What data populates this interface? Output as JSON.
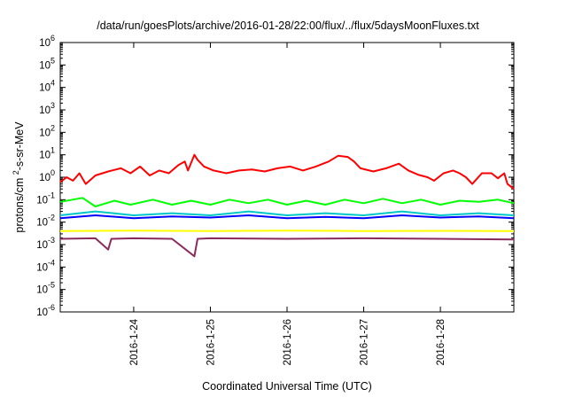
{
  "chart_data": {
    "type": "line",
    "title": "/data/run/goesPlots/archive/2016-01-28/22:00/flux/../flux/5daysMoonFluxes.txt",
    "xlabel": "Coordinated Universal Time (UTC)",
    "ylabel": "protons/cm²-s-sr-MeV",
    "yscale": "log",
    "ylim": [
      1e-06,
      1000000.0
    ],
    "xlim": [
      "2016-01-23 01:00",
      "2016-01-28 23:00"
    ],
    "grid": false,
    "legend": "none",
    "x_ticks": [
      "2016-1-24",
      "2016-1-25",
      "2016-1-26",
      "2016-1-27",
      "2016-1-28"
    ],
    "y_ticks": [
      {
        "base": "10",
        "exp": "-6"
      },
      {
        "base": "10",
        "exp": "-5"
      },
      {
        "base": "10",
        "exp": "-4"
      },
      {
        "base": "10",
        "exp": "-3"
      },
      {
        "base": "10",
        "exp": "-2"
      },
      {
        "base": "10",
        "exp": "-1"
      },
      {
        "base": "10",
        "exp": "0"
      },
      {
        "base": "10",
        "exp": "1"
      },
      {
        "base": "10",
        "exp": "2"
      },
      {
        "base": "10",
        "exp": "3"
      },
      {
        "base": "10",
        "exp": "4"
      },
      {
        "base": "10",
        "exp": "5"
      },
      {
        "base": "10",
        "exp": "6"
      }
    ],
    "series": [
      {
        "color": "#ff0000",
        "points": [
          [
            "2016-01-23 01:00",
            0.6
          ],
          [
            "2016-01-23 03:00",
            1.0
          ],
          [
            "2016-01-23 05:00",
            0.7
          ],
          [
            "2016-01-23 07:00",
            1.5
          ],
          [
            "2016-01-23 09:00",
            0.5
          ],
          [
            "2016-01-23 12:00",
            1.2
          ],
          [
            "2016-01-23 16:00",
            1.8
          ],
          [
            "2016-01-23 20:00",
            2.5
          ],
          [
            "2016-01-23 23:00",
            1.5
          ],
          [
            "2016-01-24 02:00",
            3.0
          ],
          [
            "2016-01-24 05:00",
            1.2
          ],
          [
            "2016-01-24 08:00",
            2.0
          ],
          [
            "2016-01-24 11:00",
            1.5
          ],
          [
            "2016-01-24 14:00",
            3.5
          ],
          [
            "2016-01-24 16:00",
            5.0
          ],
          [
            "2016-01-24 17:00",
            2.0
          ],
          [
            "2016-01-24 19:00",
            10.0
          ],
          [
            "2016-01-24 20:00",
            6.0
          ],
          [
            "2016-01-24 22:00",
            3.0
          ],
          [
            "2016-01-25 01:00",
            2.0
          ],
          [
            "2016-01-25 05:00",
            1.5
          ],
          [
            "2016-01-25 09:00",
            2.0
          ],
          [
            "2016-01-25 13:00",
            2.2
          ],
          [
            "2016-01-25 17:00",
            1.8
          ],
          [
            "2016-01-25 21:00",
            2.5
          ],
          [
            "2016-01-26 01:00",
            3.0
          ],
          [
            "2016-01-26 05:00",
            2.0
          ],
          [
            "2016-01-26 09:00",
            3.0
          ],
          [
            "2016-01-26 13:00",
            5.0
          ],
          [
            "2016-01-26 16:00",
            9.0
          ],
          [
            "2016-01-26 19:00",
            8.0
          ],
          [
            "2016-01-26 21:00",
            5.0
          ],
          [
            "2016-01-26 23:00",
            2.5
          ],
          [
            "2016-01-27 03:00",
            1.8
          ],
          [
            "2016-01-27 07:00",
            2.5
          ],
          [
            "2016-01-27 11:00",
            4.0
          ],
          [
            "2016-01-27 14:00",
            2.0
          ],
          [
            "2016-01-27 17:00",
            1.3
          ],
          [
            "2016-01-27 20:00",
            1.0
          ],
          [
            "2016-01-27 22:00",
            0.7
          ],
          [
            "2016-01-28 01:00",
            1.5
          ],
          [
            "2016-01-28 04:00",
            2.0
          ],
          [
            "2016-01-28 06:00",
            1.5
          ],
          [
            "2016-01-28 08:00",
            1.0
          ],
          [
            "2016-01-28 10:00",
            0.5
          ],
          [
            "2016-01-28 13:00",
            1.5
          ],
          [
            "2016-01-28 16:00",
            1.5
          ],
          [
            "2016-01-28 18:00",
            0.9
          ],
          [
            "2016-01-28 20:00",
            1.5
          ],
          [
            "2016-01-28 21:00",
            0.5
          ],
          [
            "2016-01-28 23:00",
            0.3
          ]
        ]
      },
      {
        "color": "#00ff00",
        "points": [
          [
            "2016-01-23 01:00",
            0.08
          ],
          [
            "2016-01-23 08:00",
            0.12
          ],
          [
            "2016-01-23 12:00",
            0.05
          ],
          [
            "2016-01-23 18:00",
            0.09
          ],
          [
            "2016-01-23 23:00",
            0.06
          ],
          [
            "2016-01-24 06:00",
            0.1
          ],
          [
            "2016-01-24 12:00",
            0.06
          ],
          [
            "2016-01-24 18:00",
            0.09
          ],
          [
            "2016-01-25 00:00",
            0.06
          ],
          [
            "2016-01-25 06:00",
            0.1
          ],
          [
            "2016-01-25 12:00",
            0.07
          ],
          [
            "2016-01-25 18:00",
            0.1
          ],
          [
            "2016-01-26 00:00",
            0.06
          ],
          [
            "2016-01-26 06:00",
            0.09
          ],
          [
            "2016-01-26 12:00",
            0.06
          ],
          [
            "2016-01-26 18:00",
            0.1
          ],
          [
            "2016-01-27 00:00",
            0.07
          ],
          [
            "2016-01-27 06:00",
            0.11
          ],
          [
            "2016-01-27 12:00",
            0.07
          ],
          [
            "2016-01-27 18:00",
            0.1
          ],
          [
            "2016-01-28 00:00",
            0.06
          ],
          [
            "2016-01-28 06:00",
            0.09
          ],
          [
            "2016-01-28 12:00",
            0.08
          ],
          [
            "2016-01-28 18:00",
            0.1
          ],
          [
            "2016-01-28 23:00",
            0.07
          ]
        ]
      },
      {
        "color": "#00c8c8",
        "points": [
          [
            "2016-01-23 01:00",
            0.02
          ],
          [
            "2016-01-23 12:00",
            0.03
          ],
          [
            "2016-01-24 00:00",
            0.02
          ],
          [
            "2016-01-24 12:00",
            0.025
          ],
          [
            "2016-01-25 00:00",
            0.02
          ],
          [
            "2016-01-25 12:00",
            0.03
          ],
          [
            "2016-01-26 00:00",
            0.02
          ],
          [
            "2016-01-26 12:00",
            0.025
          ],
          [
            "2016-01-27 00:00",
            0.02
          ],
          [
            "2016-01-27 12:00",
            0.03
          ],
          [
            "2016-01-28 00:00",
            0.02
          ],
          [
            "2016-01-28 12:00",
            0.025
          ],
          [
            "2016-01-28 23:00",
            0.02
          ]
        ]
      },
      {
        "color": "#0000ff",
        "points": [
          [
            "2016-01-23 01:00",
            0.015
          ],
          [
            "2016-01-23 12:00",
            0.02
          ],
          [
            "2016-01-24 00:00",
            0.015
          ],
          [
            "2016-01-24 12:00",
            0.018
          ],
          [
            "2016-01-25 00:00",
            0.016
          ],
          [
            "2016-01-25 12:00",
            0.02
          ],
          [
            "2016-01-26 00:00",
            0.015
          ],
          [
            "2016-01-26 12:00",
            0.017
          ],
          [
            "2016-01-27 00:00",
            0.015
          ],
          [
            "2016-01-27 12:00",
            0.02
          ],
          [
            "2016-01-28 00:00",
            0.016
          ],
          [
            "2016-01-28 12:00",
            0.018
          ],
          [
            "2016-01-28 23:00",
            0.015
          ]
        ]
      },
      {
        "color": "#ffff00",
        "points": [
          [
            "2016-01-23 01:00",
            0.004
          ],
          [
            "2016-01-24 00:00",
            0.0042
          ],
          [
            "2016-01-25 00:00",
            0.004
          ],
          [
            "2016-01-26 00:00",
            0.0042
          ],
          [
            "2016-01-27 00:00",
            0.004
          ],
          [
            "2016-01-28 00:00",
            0.0041
          ],
          [
            "2016-01-28 23:00",
            0.004
          ]
        ]
      },
      {
        "color": "#8b2a5c",
        "points": [
          [
            "2016-01-23 01:00",
            0.0018
          ],
          [
            "2016-01-23 12:00",
            0.0019
          ],
          [
            "2016-01-23 16:00",
            0.0006
          ],
          [
            "2016-01-23 17:00",
            0.0018
          ],
          [
            "2016-01-24 00:00",
            0.0019
          ],
          [
            "2016-01-24 12:00",
            0.0018
          ],
          [
            "2016-01-24 19:00",
            0.0003
          ],
          [
            "2016-01-24 20:00",
            0.0018
          ],
          [
            "2016-01-25 00:00",
            0.0019
          ],
          [
            "2016-01-26 00:00",
            0.0018
          ],
          [
            "2016-01-27 00:00",
            0.0019
          ],
          [
            "2016-01-28 00:00",
            0.0018
          ],
          [
            "2016-01-28 23:00",
            0.0017
          ]
        ]
      }
    ]
  }
}
